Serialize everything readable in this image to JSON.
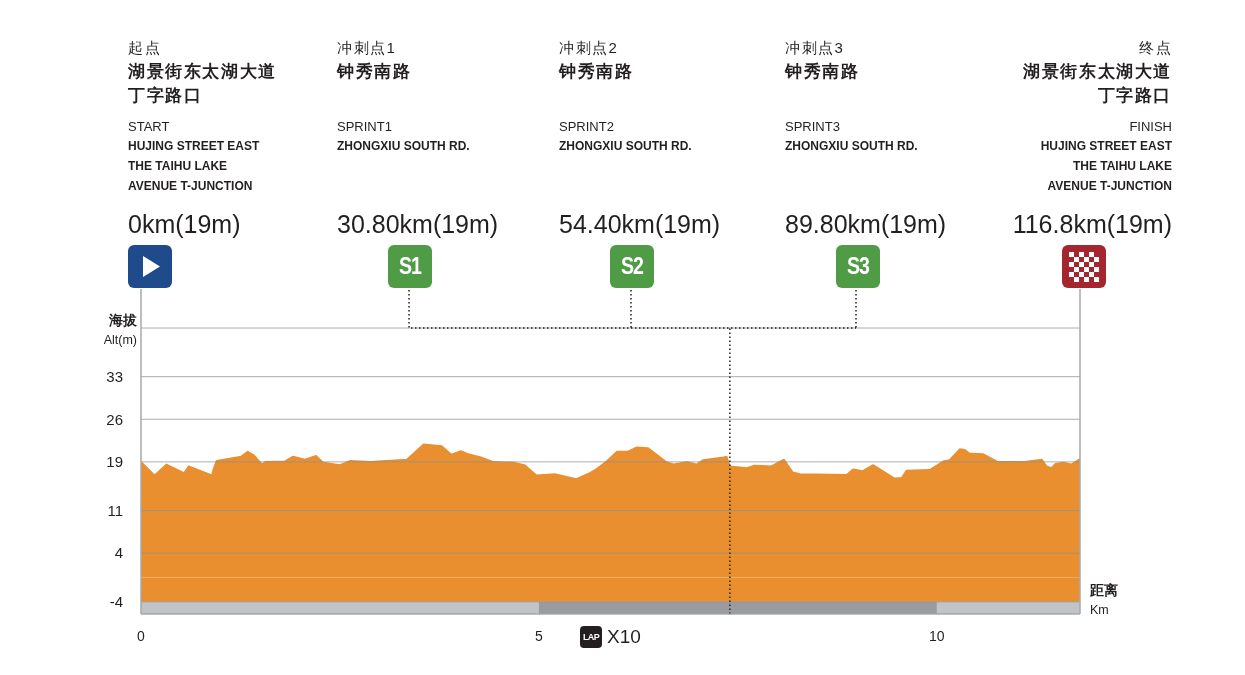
{
  "chart_data": {
    "type": "area",
    "color": "#e98f2f",
    "x": [
      0,
      0.17,
      0.32,
      0.54,
      0.6,
      0.89,
      0.91,
      0.95,
      1.26,
      1.34,
      1.42,
      1.52,
      1.56,
      1.81,
      1.91,
      2.06,
      2.2,
      2.29,
      2.5,
      2.63,
      2.88,
      3.34,
      3.55,
      3.78,
      3.9,
      4.02,
      4.11,
      4.26,
      4.43,
      4.68,
      4.82,
      4.97,
      5.2,
      5.47,
      5.64,
      5.72,
      5.85,
      5.98,
      6.12,
      6.23,
      6.37,
      6.6,
      6.69,
      6.86,
      6.98,
      7.06,
      7.3,
      7.36,
      7.4,
      7.61,
      7.71,
      7.92,
      8.08,
      8.19,
      8.28,
      8.87,
      8.95,
      9.07,
      9.2,
      9.47,
      9.56,
      9.62,
      9.91,
      10.08,
      10.16,
      10.29,
      10.35,
      10.41,
      10.58,
      10.77,
      11.08,
      11.32,
      11.38,
      11.44,
      11.49,
      11.59,
      11.69,
      11.8
    ],
    "values": [
      19,
      16.8,
      18.6,
      17.2,
      18.3,
      16.8,
      17.8,
      19.2,
      19.9,
      20.7,
      20.1,
      18.6,
      19,
      19.1,
      19.9,
      19.4,
      20,
      18.9,
      18.5,
      19.2,
      19,
      19.4,
      21.9,
      21.6,
      20.2,
      20.8,
      20.3,
      19.8,
      19,
      18.9,
      18.5,
      16.8,
      17,
      16.2,
      17.2,
      17.8,
      19.1,
      20.7,
      20.7,
      21.4,
      21.3,
      19,
      18.6,
      19,
      18.6,
      19.3,
      19.7,
      19.9,
      18.3,
      18,
      18.4,
      18.3,
      19.4,
      17.3,
      17,
      16.9,
      17.8,
      17.5,
      18.5,
      16.3,
      16.4,
      17.6,
      17.7,
      19.1,
      19.3,
      21.1,
      21,
      20.4,
      20.3,
      19,
      19,
      19.4,
      18.3,
      18,
      18.7,
      18.9,
      18.6,
      19.5
    ],
    "xlim": [
      0,
      11.8
    ],
    "xticks": [
      0,
      5,
      10
    ],
    "ylim": [
      -6,
      41
    ],
    "yticks": [
      -4,
      4,
      11,
      19,
      26,
      33
    ],
    "grid": "y",
    "ylabel": "海拔\nAlt(m)",
    "xlabel": "距离\nKm",
    "ref_lines": [
      {
        "axis": "x",
        "value": 7.4,
        "line_style": "dotted",
        "color": "#231f20"
      }
    ],
    "bands": [
      {
        "axis": "x",
        "from": 0,
        "to": 11.8,
        "color": "#c1c4c6"
      },
      {
        "axis": "x",
        "from": 5,
        "to": 10,
        "color": "#9a9b9e"
      },
      {
        "axis": "y",
        "from": -4,
        "to": 0,
        "color": "#e98f2f"
      }
    ],
    "annotations": [
      "起点",
      "湖景街东太湖大道丁字路口",
      "START",
      "HUJING STREET EAST\nTHE TAIHU LAKE\nAVENUE T-JUNCTION",
      "0km(19m)",
      "冲刺点1",
      "钟秀南路",
      "SPRINT1",
      "ZHONGXIU SOUTH RD.",
      "30.80km(19m)",
      "冲刺点2",
      "钟秀南路",
      "SPRINT2",
      "ZHONGXIU SOUTH RD.",
      "54.40km(19m)",
      "冲刺点3",
      "钟秀南路",
      "SPRINT3",
      "ZHONGXIU SOUTH RD.",
      "89.80km(19m)",
      "终点",
      "湖景街东太湖大道丁字路口",
      "FINISH",
      "HUJING STREET EAST\nTHE TAIHU LAKE\nAVENUE T-JUNCTION",
      "116.8km(19m)",
      "S1",
      "S2",
      "S3",
      "LAP",
      "X10"
    ]
  }
}
